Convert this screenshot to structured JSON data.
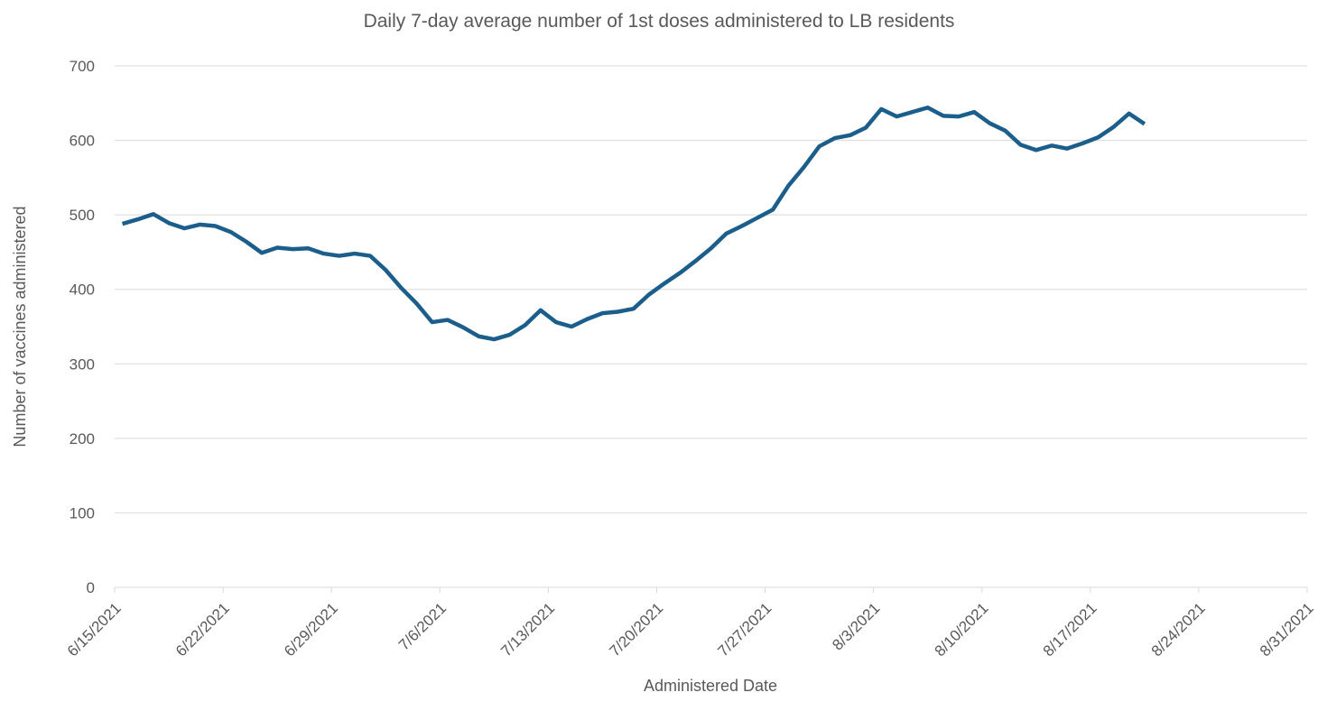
{
  "chart_data": {
    "type": "line",
    "title": "Daily 7-day average number of 1st doses administered to LB residents",
    "xlabel": "Administered Date",
    "ylabel": "Number of vaccines administered",
    "x": [
      "6/15/2021",
      "6/16/2021",
      "6/17/2021",
      "6/18/2021",
      "6/19/2021",
      "6/20/2021",
      "6/21/2021",
      "6/22/2021",
      "6/23/2021",
      "6/24/2021",
      "6/25/2021",
      "6/26/2021",
      "6/27/2021",
      "6/28/2021",
      "6/29/2021",
      "6/30/2021",
      "7/1/2021",
      "7/2/2021",
      "7/3/2021",
      "7/4/2021",
      "7/5/2021",
      "7/6/2021",
      "7/7/2021",
      "7/8/2021",
      "7/9/2021",
      "7/10/2021",
      "7/11/2021",
      "7/12/2021",
      "7/13/2021",
      "7/14/2021",
      "7/15/2021",
      "7/16/2021",
      "7/17/2021",
      "7/18/2021",
      "7/19/2021",
      "7/20/2021",
      "7/21/2021",
      "7/22/2021",
      "7/23/2021",
      "7/24/2021",
      "7/25/2021",
      "7/26/2021",
      "7/27/2021",
      "7/28/2021",
      "7/29/2021",
      "7/30/2021",
      "7/31/2021",
      "8/1/2021",
      "8/2/2021",
      "8/3/2021",
      "8/4/2021",
      "8/5/2021",
      "8/6/2021",
      "8/7/2021",
      "8/8/2021",
      "8/9/2021",
      "8/10/2021",
      "8/11/2021",
      "8/12/2021",
      "8/13/2021",
      "8/14/2021",
      "8/15/2021",
      "8/16/2021",
      "8/17/2021",
      "8/18/2021",
      "8/19/2021",
      "8/20/2021"
    ],
    "series": [
      {
        "name": "Daily 7-day average",
        "color": "#1b5e8c",
        "values": [
          488,
          494,
          501,
          489,
          482,
          487,
          485,
          477,
          464,
          449,
          456,
          454,
          455,
          448,
          445,
          448,
          445,
          426,
          402,
          381,
          356,
          359,
          349,
          337,
          333,
          339,
          352,
          372,
          356,
          350,
          360,
          368,
          370,
          374,
          393,
          408,
          422,
          438,
          455,
          475,
          485,
          496,
          507,
          539,
          564,
          592,
          603,
          607,
          617,
          642,
          632,
          638,
          644,
          633,
          632,
          638,
          623,
          613,
          594,
          587,
          593,
          589,
          596,
          604,
          618,
          636,
          622
        ]
      }
    ],
    "xlim": [
      "6/15/2021",
      "8/31/2021"
    ],
    "xticks": [
      "6/15/2021",
      "6/22/2021",
      "6/29/2021",
      "7/6/2021",
      "7/13/2021",
      "7/20/2021",
      "7/27/2021",
      "8/3/2021",
      "8/10/2021",
      "8/17/2021",
      "8/24/2021",
      "8/31/2021"
    ],
    "ylim": [
      0,
      700
    ],
    "yticks": [
      0,
      100,
      200,
      300,
      400,
      500,
      600,
      700
    ],
    "grid": true
  }
}
